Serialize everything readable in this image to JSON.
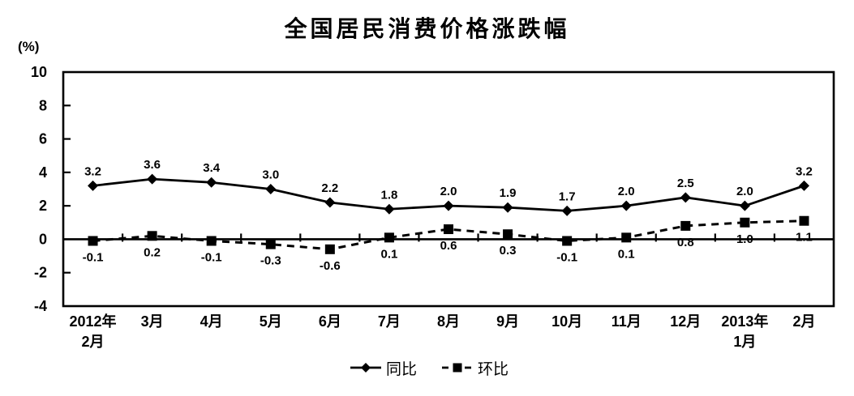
{
  "chart_data": {
    "type": "line",
    "title": "全国居民消费价格涨跌幅",
    "ylabel": "(%)",
    "categories": [
      [
        "2012年",
        "2月"
      ],
      [
        "3月"
      ],
      [
        "4月"
      ],
      [
        "5月"
      ],
      [
        "6月"
      ],
      [
        "7月"
      ],
      [
        "8月"
      ],
      [
        "9月"
      ],
      [
        "10月"
      ],
      [
        "11月"
      ],
      [
        "12月"
      ],
      [
        "2013年",
        "1月"
      ],
      [
        "2月"
      ]
    ],
    "series": [
      {
        "name": "同比",
        "line_style": "solid",
        "marker": "diamond",
        "label_position": "above",
        "values": [
          3.2,
          3.6,
          3.4,
          3.0,
          2.2,
          1.8,
          2.0,
          1.9,
          1.7,
          2.0,
          2.5,
          2.0,
          3.2
        ]
      },
      {
        "name": "环比",
        "line_style": "dashed",
        "marker": "square",
        "label_position": "below",
        "values": [
          -0.1,
          0.2,
          -0.1,
          -0.3,
          -0.6,
          0.1,
          0.6,
          0.3,
          -0.1,
          0.1,
          0.8,
          1.0,
          1.1
        ]
      }
    ],
    "ylim": [
      -4,
      10
    ],
    "yticks": [
      10,
      8,
      6,
      4,
      2,
      0,
      -2,
      -4
    ],
    "grid": false,
    "legend_position": "bottom",
    "line_color": "#000000",
    "background_color": "#ffffff"
  }
}
